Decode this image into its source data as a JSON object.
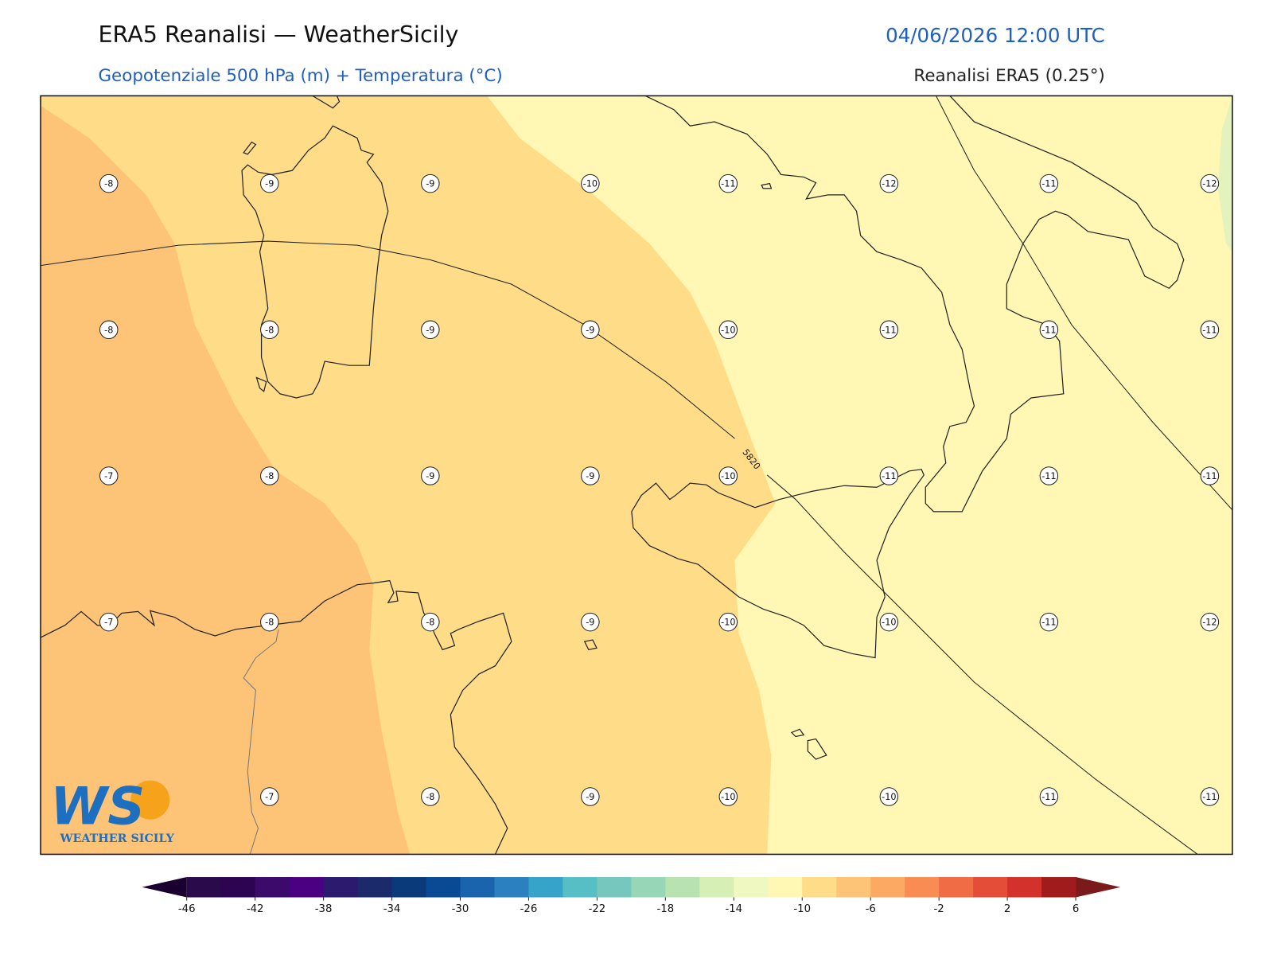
{
  "header": {
    "title": "ERA5 Reanalisi — WeatherSicily",
    "datetime": "04/06/2026 12:00 UTC",
    "subtitle": "Geopotenziale 500 hPa (m) + Temperatura (°C)",
    "source": "Reanalisi ERA5 (0.25°)"
  },
  "map": {
    "station_rows": [
      [
        -8,
        -9,
        -9,
        -10,
        -11,
        -12,
        -11,
        -12
      ],
      [
        -8,
        -8,
        -9,
        -9,
        -10,
        -11,
        -11,
        -11
      ],
      [
        -7,
        -8,
        -9,
        -9,
        -10,
        -11,
        -11,
        -11
      ],
      [
        -7,
        -8,
        -8,
        -9,
        -10,
        -10,
        -11,
        -12
      ],
      [
        null,
        -7,
        -8,
        -9,
        -10,
        -10,
        -11,
        -11
      ]
    ],
    "contour_label": "5820"
  },
  "colorbar": {
    "range": [
      -46,
      6
    ],
    "ticks": [
      -46,
      -42,
      -38,
      -34,
      -30,
      -26,
      -22,
      -18,
      -14,
      -10,
      -6,
      -2,
      2,
      6
    ],
    "colors": [
      "#2a0a4a",
      "#2d0450",
      "#3b0a6a",
      "#4b0082",
      "#2c1a6e",
      "#1b2a6b",
      "#0b3a7a",
      "#084a93",
      "#1a63ad",
      "#2b80bf",
      "#36a3c9",
      "#55bfc5",
      "#76c8bf",
      "#98d6b8",
      "#b8e3b0",
      "#d6efb5",
      "#eff8c0",
      "#fff7b3",
      "#fedc88",
      "#fdc477",
      "#fcaa63",
      "#f98c52",
      "#f06c45",
      "#e44e38",
      "#d2322b",
      "#a01c1c"
    ],
    "under_color": "#1a0030",
    "over_color": "#7b1a1a"
  },
  "logo": {
    "mark": "WS",
    "text": "WEATHER SICILY"
  }
}
